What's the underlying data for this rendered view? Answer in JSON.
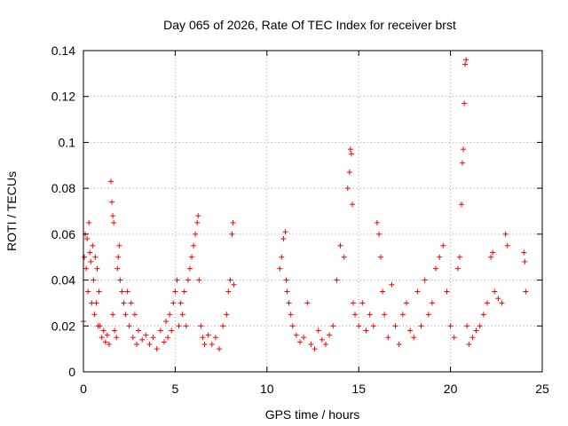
{
  "chart_data": {
    "type": "scatter",
    "title": "Day 065 of 2026, Rate Of TEC Index for receiver brst",
    "xlabel": "GPS time / hours",
    "ylabel": "ROTI / TECUs",
    "xlim": [
      0,
      25
    ],
    "ylim": [
      0,
      0.14
    ],
    "x_ticks": [
      0,
      5,
      10,
      15,
      20,
      25
    ],
    "y_ticks": [
      0,
      0.02,
      0.04,
      0.06,
      0.08,
      0.1,
      0.12,
      0.14
    ],
    "grid": true,
    "marker": "plus",
    "color": "#ff0000",
    "series": [
      {
        "points": [
          [
            0.0,
            0.022
          ],
          [
            0.05,
            0.05
          ],
          [
            0.1,
            0.06
          ],
          [
            0.15,
            0.045
          ],
          [
            0.2,
            0.058
          ],
          [
            0.25,
            0.035
          ],
          [
            0.3,
            0.065
          ],
          [
            0.35,
            0.052
          ],
          [
            0.4,
            0.048
          ],
          [
            0.45,
            0.03
          ],
          [
            0.5,
            0.055
          ],
          [
            0.55,
            0.04
          ],
          [
            0.6,
            0.025
          ],
          [
            0.65,
            0.05
          ],
          [
            0.7,
            0.03
          ],
          [
            0.75,
            0.045
          ],
          [
            0.8,
            0.02
          ],
          [
            0.85,
            0.035
          ],
          [
            0.9,
            0.02
          ],
          [
            1.0,
            0.015
          ],
          [
            1.1,
            0.018
          ],
          [
            1.2,
            0.013
          ],
          [
            1.3,
            0.016
          ],
          [
            1.4,
            0.012
          ],
          [
            1.5,
            0.083
          ],
          [
            1.55,
            0.074
          ],
          [
            1.6,
            0.068
          ],
          [
            1.65,
            0.065
          ],
          [
            1.6,
            0.025
          ],
          [
            1.7,
            0.018
          ],
          [
            1.8,
            0.015
          ],
          [
            1.85,
            0.045
          ],
          [
            1.9,
            0.05
          ],
          [
            1.95,
            0.055
          ],
          [
            2.0,
            0.04
          ],
          [
            2.1,
            0.035
          ],
          [
            2.2,
            0.03
          ],
          [
            2.3,
            0.025
          ],
          [
            2.4,
            0.035
          ],
          [
            2.5,
            0.02
          ],
          [
            2.6,
            0.03
          ],
          [
            2.7,
            0.015
          ],
          [
            2.8,
            0.025
          ],
          [
            2.9,
            0.012
          ],
          [
            3.0,
            0.018
          ],
          [
            3.2,
            0.014
          ],
          [
            3.4,
            0.016
          ],
          [
            3.6,
            0.012
          ],
          [
            3.8,
            0.015
          ],
          [
            4.0,
            0.01
          ],
          [
            4.2,
            0.018
          ],
          [
            4.4,
            0.013
          ],
          [
            4.5,
            0.022
          ],
          [
            4.6,
            0.015
          ],
          [
            4.7,
            0.025
          ],
          [
            4.8,
            0.018
          ],
          [
            4.9,
            0.03
          ],
          [
            5.0,
            0.035
          ],
          [
            5.1,
            0.04
          ],
          [
            5.2,
            0.02
          ],
          [
            5.3,
            0.03
          ],
          [
            5.4,
            0.025
          ],
          [
            5.5,
            0.035
          ],
          [
            5.6,
            0.02
          ],
          [
            5.7,
            0.04
          ],
          [
            5.8,
            0.045
          ],
          [
            5.9,
            0.05
          ],
          [
            6.0,
            0.055
          ],
          [
            6.1,
            0.06
          ],
          [
            6.2,
            0.065
          ],
          [
            6.25,
            0.068
          ],
          [
            6.3,
            0.04
          ],
          [
            6.4,
            0.02
          ],
          [
            6.5,
            0.015
          ],
          [
            6.6,
            0.012
          ],
          [
            6.8,
            0.016
          ],
          [
            7.0,
            0.012
          ],
          [
            7.2,
            0.015
          ],
          [
            7.4,
            0.01
          ],
          [
            7.6,
            0.02
          ],
          [
            7.8,
            0.025
          ],
          [
            7.9,
            0.035
          ],
          [
            8.0,
            0.04
          ],
          [
            8.1,
            0.06
          ],
          [
            8.15,
            0.065
          ],
          [
            8.2,
            0.038
          ],
          [
            10.7,
            0.045
          ],
          [
            10.8,
            0.05
          ],
          [
            10.9,
            0.058
          ],
          [
            11.0,
            0.061
          ],
          [
            11.05,
            0.04
          ],
          [
            11.1,
            0.035
          ],
          [
            11.2,
            0.03
          ],
          [
            11.3,
            0.025
          ],
          [
            11.4,
            0.02
          ],
          [
            11.6,
            0.016
          ],
          [
            11.8,
            0.013
          ],
          [
            12.0,
            0.015
          ],
          [
            12.2,
            0.03
          ],
          [
            12.4,
            0.012
          ],
          [
            12.6,
            0.01
          ],
          [
            12.8,
            0.018
          ],
          [
            13.0,
            0.014
          ],
          [
            13.2,
            0.012
          ],
          [
            13.4,
            0.016
          ],
          [
            13.6,
            0.02
          ],
          [
            13.8,
            0.04
          ],
          [
            14.0,
            0.055
          ],
          [
            14.2,
            0.05
          ],
          [
            14.4,
            0.08
          ],
          [
            14.5,
            0.087
          ],
          [
            14.55,
            0.097
          ],
          [
            14.6,
            0.095
          ],
          [
            14.65,
            0.073
          ],
          [
            14.7,
            0.03
          ],
          [
            14.8,
            0.025
          ],
          [
            15.0,
            0.02
          ],
          [
            15.2,
            0.03
          ],
          [
            15.4,
            0.018
          ],
          [
            15.6,
            0.025
          ],
          [
            15.8,
            0.02
          ],
          [
            16.0,
            0.065
          ],
          [
            16.1,
            0.06
          ],
          [
            16.2,
            0.05
          ],
          [
            16.3,
            0.035
          ],
          [
            16.4,
            0.025
          ],
          [
            16.6,
            0.015
          ],
          [
            16.8,
            0.038
          ],
          [
            17.0,
            0.02
          ],
          [
            17.2,
            0.012
          ],
          [
            17.4,
            0.025
          ],
          [
            17.6,
            0.03
          ],
          [
            17.8,
            0.018
          ],
          [
            18.0,
            0.015
          ],
          [
            18.2,
            0.035
          ],
          [
            18.4,
            0.02
          ],
          [
            18.6,
            0.04
          ],
          [
            18.8,
            0.025
          ],
          [
            19.0,
            0.03
          ],
          [
            19.2,
            0.045
          ],
          [
            19.4,
            0.05
          ],
          [
            19.6,
            0.055
          ],
          [
            19.8,
            0.035
          ],
          [
            20.0,
            0.02
          ],
          [
            20.2,
            0.015
          ],
          [
            20.4,
            0.045
          ],
          [
            20.5,
            0.05
          ],
          [
            20.6,
            0.073
          ],
          [
            20.65,
            0.091
          ],
          [
            20.7,
            0.097
          ],
          [
            20.75,
            0.117
          ],
          [
            20.8,
            0.134
          ],
          [
            20.85,
            0.136
          ],
          [
            20.9,
            0.02
          ],
          [
            21.0,
            0.012
          ],
          [
            21.2,
            0.015
          ],
          [
            21.4,
            0.018
          ],
          [
            21.6,
            0.02
          ],
          [
            21.8,
            0.025
          ],
          [
            22.0,
            0.03
          ],
          [
            22.2,
            0.05
          ],
          [
            22.3,
            0.052
          ],
          [
            22.4,
            0.035
          ],
          [
            22.6,
            0.032
          ],
          [
            22.8,
            0.03
          ],
          [
            23.0,
            0.06
          ],
          [
            23.1,
            0.055
          ],
          [
            24.0,
            0.052
          ],
          [
            24.05,
            0.048
          ],
          [
            24.1,
            0.035
          ]
        ]
      }
    ]
  }
}
